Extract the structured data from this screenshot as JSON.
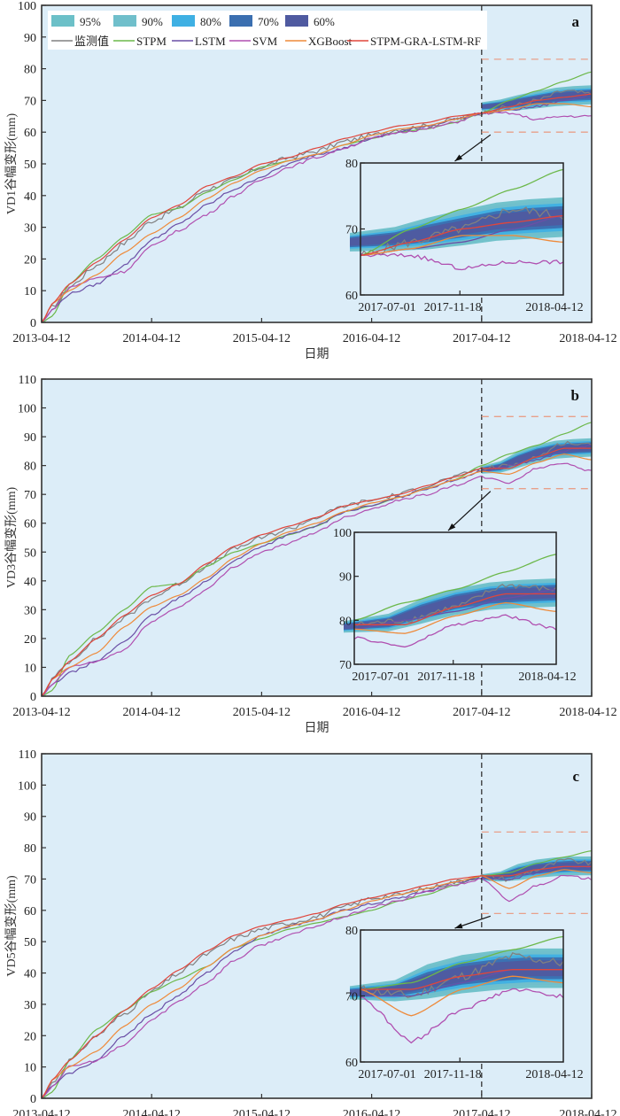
{
  "figure": {
    "background_plot": "#dcedf8",
    "colors": {
      "band_95": "#6cc0c8",
      "band_90": "#70bfcb",
      "band_80": "#3fb0e3",
      "band_70": "#3b6fb0",
      "band_60": "#4f5aa0",
      "monitored": "#808080",
      "STPM": "#6cb84a",
      "LSTM": "#6a4fa6",
      "SVM": "#b04fb0",
      "XGBoost": "#ee8a3a",
      "hybrid": "#e0463c",
      "zoom_box": "#e8a08a",
      "split_line": "#333333"
    },
    "legend": {
      "bands": [
        "95%",
        "90%",
        "80%",
        "70%",
        "60%"
      ],
      "lines": [
        "监测值",
        "STPM",
        "LSTM",
        "SVM",
        "XGBoost",
        "STPM-GRA-LSTM-RF"
      ]
    },
    "xlabel": "日期",
    "x_ticks": [
      "2013-04-12",
      "2014-04-12",
      "2015-04-12",
      "2016-04-12",
      "2017-04-12",
      "2018-04-12"
    ],
    "inset_x_ticks": [
      "2017-07-01",
      "2017-11-18",
      "2018-04-12"
    ],
    "split_date": "2017-04-12"
  },
  "chart_data": [
    {
      "type": "line",
      "panel": "a",
      "ylabel": "VD1谷幅变形(mm)",
      "xlabel": "日期",
      "xlim": [
        "2013-04-12",
        "2018-04-12"
      ],
      "ylim": [
        0,
        100
      ],
      "y_ticks": [
        0,
        10,
        20,
        30,
        40,
        50,
        60,
        70,
        80,
        90,
        100
      ],
      "inset": {
        "ylim": [
          60,
          80
        ],
        "y_ticks": [
          60,
          70,
          80
        ],
        "xlim": [
          "2017-04-12",
          "2018-04-12"
        ]
      },
      "zoom_box_y": [
        60,
        83
      ],
      "x": [
        0,
        0.1,
        0.25,
        0.5,
        0.75,
        1.0,
        1.25,
        1.5,
        1.75,
        2.0,
        2.25,
        2.5,
        2.75,
        3.0,
        3.25,
        3.5,
        3.75,
        4.0,
        4.25,
        4.5,
        4.75,
        5.0
      ],
      "series": [
        {
          "name": "监测值",
          "values": [
            0,
            5,
            11,
            18,
            25,
            32,
            36,
            42,
            45,
            49,
            52,
            54,
            57,
            59,
            61,
            62,
            64,
            66,
            68,
            70,
            73,
            72
          ]
        },
        {
          "name": "STPM",
          "values": [
            0,
            2,
            12,
            20,
            27,
            34,
            36,
            41,
            45,
            49,
            51,
            53,
            56,
            58,
            60,
            61,
            63,
            66,
            70,
            73,
            76,
            79
          ]
        },
        {
          "name": "LSTM",
          "values": [
            0,
            4,
            9,
            12,
            18,
            26,
            31,
            37,
            42,
            46,
            50,
            53,
            55,
            58,
            60,
            62,
            64,
            66,
            67,
            68,
            70,
            72
          ]
        },
        {
          "name": "SVM",
          "values": [
            0,
            4,
            11,
            14,
            16,
            24,
            29,
            34,
            40,
            45,
            49,
            52,
            55,
            58,
            60,
            61,
            63,
            66,
            66,
            64,
            65,
            65
          ]
        },
        {
          "name": "XGBoost",
          "values": [
            0,
            6,
            10,
            15,
            22,
            28,
            33,
            39,
            44,
            48,
            51,
            53,
            56,
            59,
            61,
            62,
            64,
            66,
            67,
            69,
            69,
            68
          ]
        },
        {
          "name": "STPM-GRA-LSTM-RF",
          "values": [
            0,
            6,
            12,
            19,
            26,
            33,
            37,
            43,
            46,
            50,
            52,
            55,
            58,
            60,
            62,
            63,
            65,
            66,
            68,
            70,
            71,
            72
          ]
        }
      ],
      "band_center": [
        68,
        68.5,
        69.3,
        70.2,
        71.1,
        71.5,
        71.8
      ],
      "band_half_width_95": [
        1.4,
        1.8,
        2.4,
        2.7,
        2.9,
        3.0,
        3.0
      ],
      "band_x": [
        4.0,
        4.17,
        4.33,
        4.5,
        4.67,
        4.83,
        5.0
      ]
    },
    {
      "type": "line",
      "panel": "b",
      "ylabel": "VD3谷幅变形(mm)",
      "xlabel": "日期",
      "xlim": [
        "2013-04-12",
        "2018-04-12"
      ],
      "ylim": [
        0,
        110
      ],
      "y_ticks": [
        0,
        10,
        20,
        30,
        40,
        50,
        60,
        70,
        80,
        90,
        100,
        110
      ],
      "inset": {
        "ylim": [
          70,
          100
        ],
        "y_ticks": [
          70,
          80,
          90,
          100
        ],
        "xlim": [
          "2017-04-12",
          "2018-04-12"
        ]
      },
      "zoom_box_y": [
        72,
        97
      ],
      "x": [
        0,
        0.1,
        0.25,
        0.5,
        0.75,
        1.0,
        1.25,
        1.5,
        1.75,
        2.0,
        2.25,
        2.5,
        2.75,
        3.0,
        3.25,
        3.5,
        3.75,
        4.0,
        4.25,
        4.5,
        4.75,
        5.0
      ],
      "series": [
        {
          "name": "监测值",
          "values": [
            0,
            6,
            12,
            20,
            27,
            34,
            39,
            45,
            51,
            55,
            58,
            62,
            66,
            68,
            70,
            73,
            76,
            79,
            80,
            83,
            88,
            87
          ]
        },
        {
          "name": "STPM",
          "values": [
            0,
            2,
            14,
            22,
            30,
            38,
            39,
            45,
            50,
            53,
            56,
            59,
            64,
            66,
            69,
            72,
            75,
            80,
            84,
            87,
            91,
            95
          ]
        },
        {
          "name": "LSTM",
          "values": [
            0,
            4,
            8,
            12,
            19,
            28,
            34,
            40,
            47,
            52,
            56,
            59,
            64,
            66,
            69,
            72,
            75,
            78,
            80,
            82,
            85,
            87
          ]
        },
        {
          "name": "SVM",
          "values": [
            0,
            4,
            10,
            12,
            16,
            26,
            31,
            37,
            45,
            50,
            53,
            57,
            62,
            65,
            68,
            70,
            73,
            76,
            74,
            79,
            81,
            78
          ]
        },
        {
          "name": "XGBoost",
          "values": [
            0,
            6,
            10,
            15,
            24,
            31,
            35,
            41,
            48,
            53,
            57,
            60,
            64,
            67,
            69,
            72,
            75,
            78,
            77,
            81,
            84,
            82
          ]
        },
        {
          "name": "STPM-GRA-LSTM-RF",
          "values": [
            0,
            6,
            12,
            20,
            28,
            35,
            39,
            46,
            52,
            56,
            59,
            62,
            66,
            68,
            70,
            73,
            76,
            79,
            79,
            83,
            86,
            86
          ]
        }
      ],
      "band_center": [
        78.5,
        79.5,
        82,
        84.2,
        85.5,
        86,
        86.3
      ],
      "band_half_width_95": [
        1.3,
        2.0,
        2.8,
        3.0,
        3.1,
        3.2,
        3.2
      ],
      "band_x": [
        4.0,
        4.17,
        4.33,
        4.5,
        4.67,
        4.83,
        5.0
      ]
    },
    {
      "type": "line",
      "panel": "c",
      "ylabel": "VD5谷幅变形(mm)",
      "xlabel": "日期",
      "xlim": [
        "2013-04-12",
        "2018-04-12"
      ],
      "ylim": [
        0,
        110
      ],
      "y_ticks": [
        0,
        10,
        20,
        30,
        40,
        50,
        60,
        70,
        80,
        90,
        100,
        110
      ],
      "inset": {
        "ylim": [
          60,
          80
        ],
        "y_ticks": [
          60,
          70,
          80
        ],
        "xlim": [
          "2017-04-12",
          "2018-04-12"
        ]
      },
      "zoom_box_y": [
        59,
        85
      ],
      "x": [
        0,
        0.1,
        0.25,
        0.5,
        0.75,
        1.0,
        1.25,
        1.5,
        1.75,
        2.0,
        2.25,
        2.5,
        2.75,
        3.0,
        3.25,
        3.5,
        3.75,
        4.0,
        4.25,
        4.5,
        4.75,
        5.0
      ],
      "series": [
        {
          "name": "监测值",
          "values": [
            0,
            5,
            12,
            20,
            27,
            34,
            40,
            46,
            51,
            54,
            56,
            58,
            61,
            64,
            65,
            67,
            69,
            71,
            70,
            73,
            76,
            75
          ]
        },
        {
          "name": "STPM",
          "values": [
            0,
            2,
            12,
            22,
            28,
            34,
            38,
            42,
            48,
            51,
            54,
            56,
            58,
            60,
            63,
            65,
            68,
            71,
            72,
            75,
            77,
            79
          ]
        },
        {
          "name": "LSTM",
          "values": [
            0,
            4,
            8,
            12,
            20,
            27,
            33,
            40,
            47,
            52,
            55,
            57,
            60,
            62,
            64,
            66,
            69,
            70,
            70,
            72,
            74,
            74
          ]
        },
        {
          "name": "SVM",
          "values": [
            0,
            4,
            10,
            12,
            17,
            25,
            31,
            37,
            44,
            49,
            52,
            55,
            58,
            61,
            63,
            66,
            68,
            70,
            63,
            68,
            71,
            70
          ]
        },
        {
          "name": "XGBoost",
          "values": [
            0,
            6,
            10,
            15,
            23,
            30,
            35,
            42,
            48,
            52,
            55,
            57,
            60,
            63,
            65,
            67,
            69,
            71,
            67,
            71,
            73,
            72
          ]
        },
        {
          "name": "STPM-GRA-LSTM-RF",
          "values": [
            0,
            6,
            12,
            20,
            28,
            35,
            41,
            47,
            52,
            55,
            57,
            59,
            62,
            64,
            66,
            68,
            70,
            71,
            71,
            73,
            74,
            74
          ]
        }
      ],
      "band_center": [
        70.5,
        70.8,
        72.2,
        73.3,
        73.9,
        74.2,
        74.2
      ],
      "band_half_width_95": [
        1.0,
        1.6,
        2.6,
        2.9,
        3.0,
        3.0,
        3.0
      ],
      "band_x": [
        4.0,
        4.17,
        4.33,
        4.5,
        4.67,
        4.83,
        5.0
      ]
    }
  ]
}
